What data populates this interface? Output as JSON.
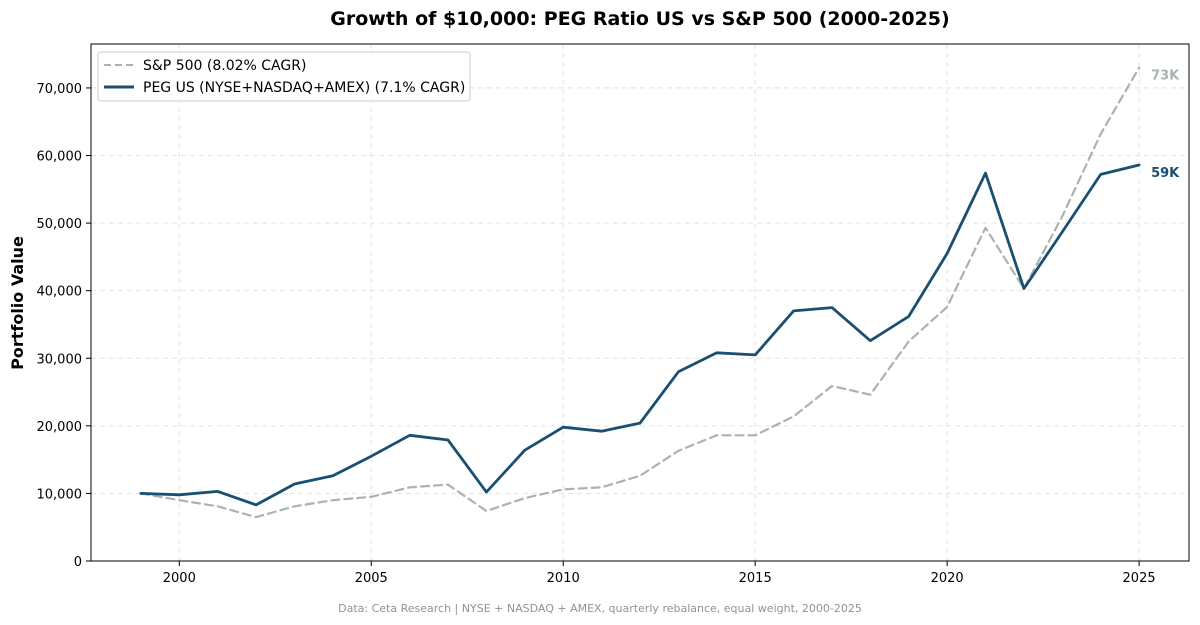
{
  "chart_data": {
    "type": "line",
    "title": "Growth of $10,000: PEG Ratio US vs S&P 500 (2000-2025)",
    "xlabel": "",
    "ylabel": "Portfolio Value",
    "xlim": [
      1997.7,
      2026.3
    ],
    "ylim": [
      0,
      76500
    ],
    "x_ticks": [
      2000,
      2005,
      2010,
      2015,
      2020,
      2025
    ],
    "x_tick_labels": [
      "2000",
      "2005",
      "2010",
      "2015",
      "2020",
      "2025"
    ],
    "y_ticks": [
      0,
      10000,
      20000,
      30000,
      40000,
      50000,
      60000,
      70000
    ],
    "y_tick_labels": [
      "0",
      "10,000",
      "20,000",
      "30,000",
      "40,000",
      "50,000",
      "60,000",
      "70,000"
    ],
    "grid": true,
    "legend_position": "top-left",
    "x": [
      1999,
      2000,
      2001,
      2002,
      2003,
      2004,
      2005,
      2006,
      2007,
      2008,
      2009,
      2010,
      2011,
      2012,
      2013,
      2014,
      2015,
      2016,
      2017,
      2018,
      2019,
      2020,
      2021,
      2022,
      2023,
      2024,
      2025
    ],
    "series": [
      {
        "name": "S&P 500 (8.02% CAGR)",
        "color": "#a8b3b2",
        "style": "dashed",
        "end_label": "73K",
        "values": [
          10000,
          9000,
          8100,
          6500,
          8100,
          9000,
          9500,
          10900,
          11300,
          7400,
          9300,
          10600,
          10900,
          12600,
          16300,
          18600,
          18600,
          21400,
          25900,
          24600,
          32500,
          37600,
          49300,
          40300,
          51000,
          63200,
          73000
        ]
      },
      {
        "name": "PEG US (NYSE+NASDAQ+AMEX) (7.1% CAGR)",
        "color": "#1b4f72",
        "style": "solid",
        "end_label": "59K",
        "values": [
          10000,
          9800,
          10300,
          8300,
          11400,
          12600,
          15500,
          18600,
          17900,
          10200,
          16400,
          19800,
          19200,
          20400,
          28000,
          30800,
          30500,
          37000,
          37500,
          32600,
          36200,
          45500,
          57400,
          40300,
          48700,
          57200,
          58600
        ]
      }
    ],
    "footnote": "Data: Ceta Research | NYSE + NASDAQ + AMEX, quarterly rebalance, equal weight, 2000-2025"
  }
}
